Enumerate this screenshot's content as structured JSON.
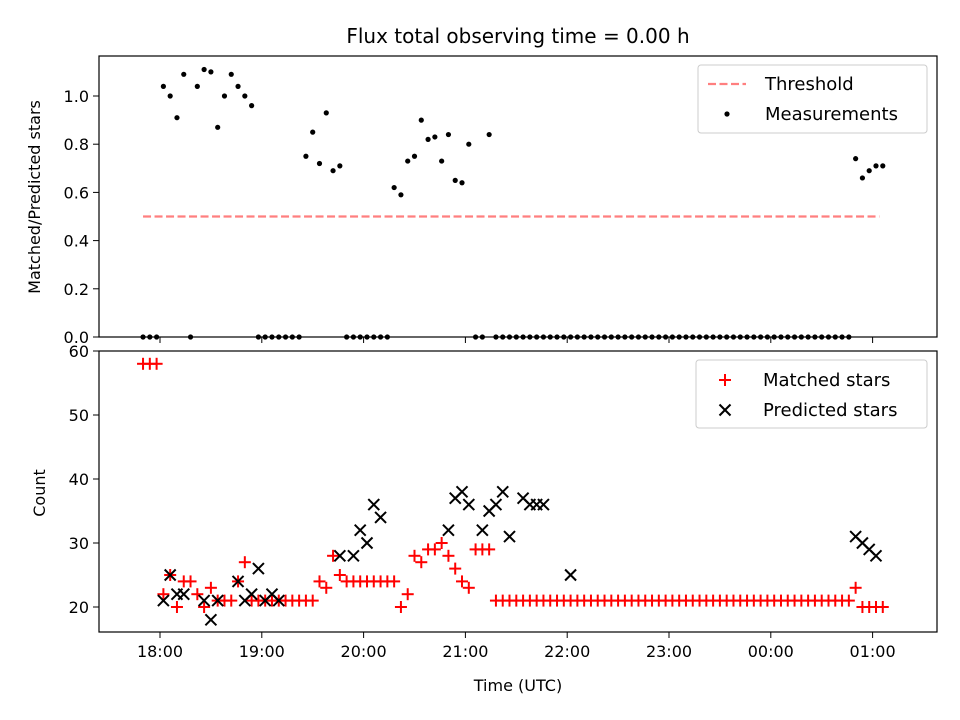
{
  "chart_data": [
    {
      "type": "scatter",
      "title": "Flux total observing time = 0.00 h",
      "ylabel": "Matched/Predicted stars",
      "xlabel": "",
      "ylim": [
        0,
        1.16
      ],
      "yticks": [
        "0.0",
        "0.2",
        "0.4",
        "0.6",
        "0.8",
        "1.0"
      ],
      "xticks": [
        "18:00",
        "19:00",
        "20:00",
        "21:00",
        "22:00",
        "23:00",
        "00:00",
        "01:00"
      ],
      "legend_position": "top-right",
      "threshold": {
        "name": "Threshold",
        "value": 0.5,
        "x_start": "17:50",
        "x_end": "01:04",
        "color": "#ff7f7f"
      },
      "series": [
        {
          "name": "Measurements",
          "color": "#000000",
          "x": [
            "17:50",
            "17:54",
            "17:58",
            "18:02",
            "18:06",
            "18:10",
            "18:14",
            "18:18",
            "18:22",
            "18:26",
            "18:30",
            "18:34",
            "18:38",
            "18:42",
            "18:46",
            "18:50",
            "18:54",
            "18:58",
            "19:02",
            "19:06",
            "19:10",
            "19:14",
            "19:18",
            "19:22",
            "19:26",
            "19:30",
            "19:34",
            "19:38",
            "19:42",
            "19:46",
            "19:50",
            "19:54",
            "19:58",
            "20:02",
            "20:06",
            "20:10",
            "20:14",
            "20:18",
            "20:22",
            "20:26",
            "20:30",
            "20:34",
            "20:38",
            "20:42",
            "20:46",
            "20:50",
            "20:54",
            "20:58",
            "21:02",
            "21:06",
            "21:10",
            "21:14",
            "21:18",
            "21:22",
            "21:26",
            "21:30",
            "21:34",
            "21:38",
            "21:42",
            "21:46",
            "21:50",
            "21:54",
            "21:58",
            "22:02",
            "22:06",
            "22:10",
            "22:14",
            "22:18",
            "22:22",
            "22:26",
            "22:30",
            "22:34",
            "22:38",
            "22:42",
            "22:46",
            "22:50",
            "22:54",
            "22:58",
            "23:02",
            "23:06",
            "23:10",
            "23:14",
            "23:18",
            "23:22",
            "23:26",
            "23:30",
            "23:34",
            "23:38",
            "23:42",
            "23:46",
            "23:50",
            "23:54",
            "23:58",
            "00:02",
            "00:06",
            "00:10",
            "00:14",
            "00:18",
            "00:22",
            "00:26",
            "00:30",
            "00:34",
            "00:38",
            "00:42",
            "00:46",
            "00:50",
            "00:54",
            "00:58",
            "01:02",
            "01:06"
          ],
          "y": [
            0,
            0,
            0,
            1.04,
            1.0,
            0.91,
            1.09,
            0,
            1.04,
            1.11,
            1.1,
            0.87,
            1.0,
            1.09,
            1.04,
            1.0,
            0.96,
            0,
            0,
            0,
            0,
            0,
            0,
            0,
            0.75,
            0.85,
            0.72,
            0.93,
            0.69,
            0.71,
            0,
            0,
            0,
            0,
            0,
            0,
            0,
            0.62,
            0.59,
            0.73,
            0.75,
            0.9,
            0.82,
            0.83,
            0.73,
            0.84,
            0.65,
            0.64,
            0.8,
            0,
            0,
            0.84,
            0,
            0,
            0,
            0,
            0,
            0,
            0,
            0,
            0,
            0,
            0,
            0,
            0,
            0,
            0,
            0,
            0,
            0,
            0,
            0,
            0,
            0,
            0,
            0,
            0,
            0,
            0,
            0,
            0,
            0,
            0,
            0,
            0,
            0,
            0,
            0,
            0,
            0,
            0,
            0,
            0,
            0,
            0,
            0,
            0,
            0,
            0,
            0,
            0,
            0,
            0,
            0,
            0,
            0.74,
            0.66,
            0.69,
            0.71,
            0.71
          ]
        }
      ]
    },
    {
      "type": "scatter",
      "title": "",
      "xlabel": "Time (UTC)",
      "ylabel": "Count",
      "ylim": [
        16,
        60
      ],
      "yticks": [
        "20",
        "30",
        "40",
        "50",
        "60"
      ],
      "xticks": [
        "18:00",
        "19:00",
        "20:00",
        "21:00",
        "22:00",
        "23:00",
        "00:00",
        "01:00"
      ],
      "legend_position": "top-right",
      "series": [
        {
          "name": "Matched stars",
          "marker": "plus",
          "color": "#ff0000",
          "x": [
            "17:50",
            "17:54",
            "17:58",
            "18:02",
            "18:06",
            "18:10",
            "18:14",
            "18:18",
            "18:22",
            "18:26",
            "18:30",
            "18:34",
            "18:38",
            "18:42",
            "18:46",
            "18:50",
            "18:54",
            "18:58",
            "19:02",
            "19:06",
            "19:10",
            "19:14",
            "19:18",
            "19:22",
            "19:26",
            "19:30",
            "19:34",
            "19:38",
            "19:42",
            "19:46",
            "19:50",
            "19:54",
            "19:58",
            "20:02",
            "20:06",
            "20:10",
            "20:14",
            "20:18",
            "20:22",
            "20:26",
            "20:30",
            "20:34",
            "20:38",
            "20:42",
            "20:46",
            "20:50",
            "20:54",
            "20:58",
            "21:02",
            "21:06",
            "21:10",
            "21:14",
            "21:18",
            "21:22",
            "21:26",
            "21:30",
            "21:34",
            "21:38",
            "21:42",
            "21:46",
            "21:50",
            "21:54",
            "21:58",
            "22:02",
            "22:06",
            "22:10",
            "22:14",
            "22:18",
            "22:22",
            "22:26",
            "22:30",
            "22:34",
            "22:38",
            "22:42",
            "22:46",
            "22:50",
            "22:54",
            "22:58",
            "23:02",
            "23:06",
            "23:10",
            "23:14",
            "23:18",
            "23:22",
            "23:26",
            "23:30",
            "23:34",
            "23:38",
            "23:42",
            "23:46",
            "23:50",
            "23:54",
            "23:58",
            "00:02",
            "00:06",
            "00:10",
            "00:14",
            "00:18",
            "00:22",
            "00:26",
            "00:30",
            "00:34",
            "00:38",
            "00:42",
            "00:46",
            "00:50",
            "00:54",
            "00:58",
            "01:02",
            "01:06"
          ],
          "y": [
            58,
            58,
            58,
            22,
            25,
            20,
            24,
            24,
            22,
            20,
            23,
            21,
            21,
            21,
            24,
            27,
            21,
            21,
            21,
            21,
            21,
            21,
            21,
            21,
            21,
            21,
            24,
            23,
            28,
            25,
            24,
            24,
            24,
            24,
            24,
            24,
            24,
            24,
            20,
            22,
            28,
            27,
            29,
            29,
            30,
            28,
            26,
            24,
            23,
            29,
            29,
            29,
            21,
            21,
            21,
            21,
            21,
            21,
            21,
            21,
            21,
            21,
            21,
            21,
            21,
            21,
            21,
            21,
            21,
            21,
            21,
            21,
            21,
            21,
            21,
            21,
            21,
            21,
            21,
            21,
            21,
            21,
            21,
            21,
            21,
            21,
            21,
            21,
            21,
            21,
            21,
            21,
            21,
            21,
            21,
            21,
            21,
            21,
            21,
            21,
            21,
            21,
            21,
            21,
            21,
            23,
            20,
            20,
            20,
            20
          ]
        },
        {
          "name": "Predicted stars",
          "marker": "x",
          "color": "#000000",
          "x": [
            "18:02",
            "18:06",
            "18:10",
            "18:14",
            "18:26",
            "18:30",
            "18:34",
            "18:46",
            "18:50",
            "18:54",
            "18:58",
            "19:02",
            "19:06",
            "19:10",
            "19:46",
            "19:54",
            "19:58",
            "20:02",
            "20:06",
            "20:10",
            "20:50",
            "20:54",
            "20:58",
            "21:02",
            "21:10",
            "21:14",
            "21:18",
            "21:22",
            "21:26",
            "21:34",
            "21:38",
            "21:42",
            "21:46",
            "22:02",
            "00:50",
            "00:54",
            "00:58",
            "01:02"
          ],
          "y": [
            21,
            25,
            22,
            22,
            21,
            18,
            21,
            24,
            21,
            22,
            26,
            21,
            22,
            21,
            28,
            28,
            32,
            30,
            36,
            34,
            32,
            37,
            38,
            36,
            32,
            35,
            36,
            38,
            31,
            37,
            36,
            36,
            36,
            25,
            31,
            30,
            29,
            28
          ]
        }
      ]
    }
  ]
}
